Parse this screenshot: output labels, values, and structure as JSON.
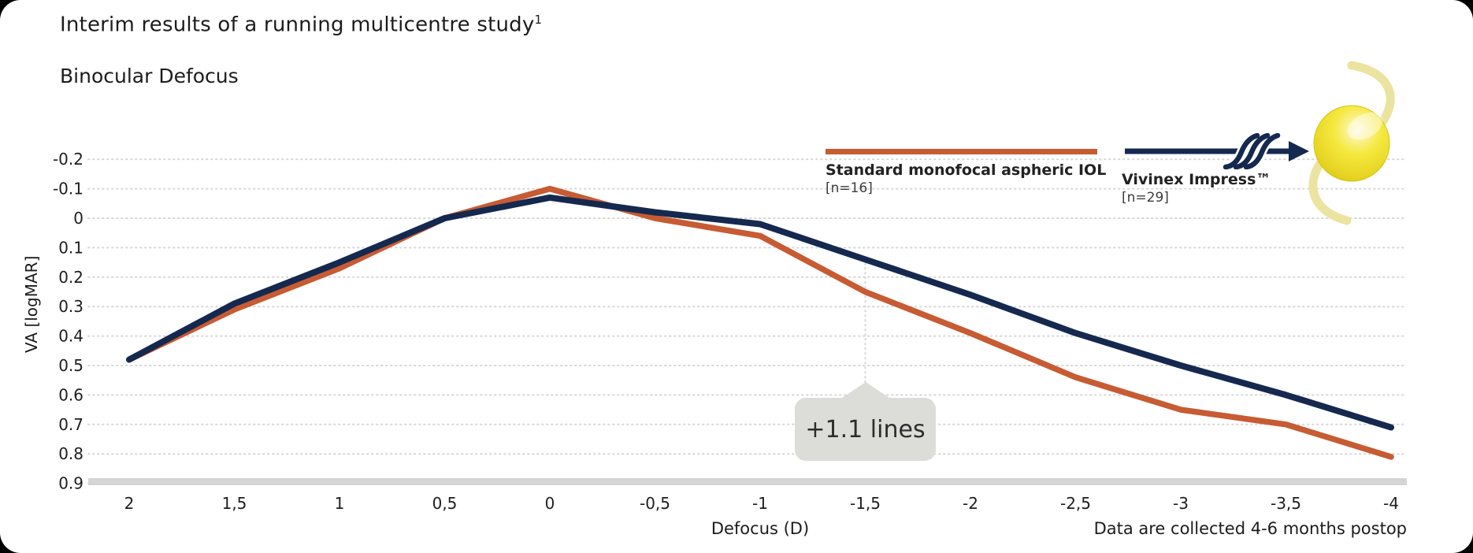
{
  "slide": {
    "title": "Interim results of a running multicentre study",
    "title_footnote": "1",
    "subtitle": "Binocular Defocus",
    "footer_note": "Data are collected 4-6 months postop"
  },
  "legend": {
    "monofocal": {
      "label": "Standard monofocal aspheric IOL",
      "n": "[n=16]",
      "color": "#c75b33"
    },
    "vivinex": {
      "label": "Vivinex Impress™",
      "n": "[n=29]",
      "color": "#15294f"
    }
  },
  "annotation": {
    "text": "+1.1 lines",
    "at_x": -1.5
  },
  "colors": {
    "orange_series": "#c75b33",
    "navy_series": "#15294f",
    "gridline": "#d7d7d7",
    "axis_bar": "#d5d5d5",
    "callout_bg": "#dcddd8",
    "text": "#1c1c1c"
  },
  "icons": {
    "lens_gradient": [
      "#fdfad8",
      "#f5e83e",
      "#e6d321",
      "#cdbb14"
    ],
    "lens_haptic": "#ebe3a0",
    "lens_highlight": "#ffffff"
  },
  "chart_data": {
    "type": "line",
    "title": "Binocular Defocus",
    "xlabel": "Defocus (D)",
    "ylabel": "VA [logMAR]",
    "x": [
      2,
      1.5,
      1,
      0.5,
      0,
      -0.5,
      -1,
      -1.5,
      -2,
      -2.5,
      -3,
      -3.5,
      -4
    ],
    "x_tick_labels": [
      "2",
      "1,5",
      "1",
      "0,5",
      "0",
      "-0,5",
      "-1",
      "-1,5",
      "-2",
      "-2,5",
      "-3",
      "-3,5",
      "-4"
    ],
    "y_ticks": [
      -0.2,
      -0.1,
      0,
      0.1,
      0.2,
      0.3,
      0.4,
      0.5,
      0.6,
      0.7,
      0.8,
      0.9
    ],
    "y_tick_labels": [
      "-0.2",
      "-0.1",
      "0",
      "0.1",
      "0.2",
      "0.3",
      "0.4",
      "0.5",
      "0.6",
      "0.7",
      "0.8",
      "0.9"
    ],
    "xlim": [
      2,
      -4
    ],
    "ylim": [
      -0.2,
      0.9
    ],
    "y_axis_reversed": true,
    "grid": "horizontal-dotted",
    "legend_position": "top-right",
    "series": [
      {
        "name": "Standard monofocal aspheric IOL",
        "n": 16,
        "color": "#c75b33",
        "values": [
          0.48,
          0.31,
          0.17,
          0.0,
          -0.1,
          0.0,
          0.06,
          0.25,
          0.39,
          0.54,
          0.65,
          0.7,
          0.81
        ]
      },
      {
        "name": "Vivinex Impress™",
        "n": 29,
        "color": "#15294f",
        "values": [
          0.48,
          0.29,
          0.15,
          0.0,
          -0.07,
          -0.02,
          0.02,
          0.14,
          0.26,
          0.39,
          0.5,
          0.6,
          0.71
        ]
      }
    ]
  }
}
